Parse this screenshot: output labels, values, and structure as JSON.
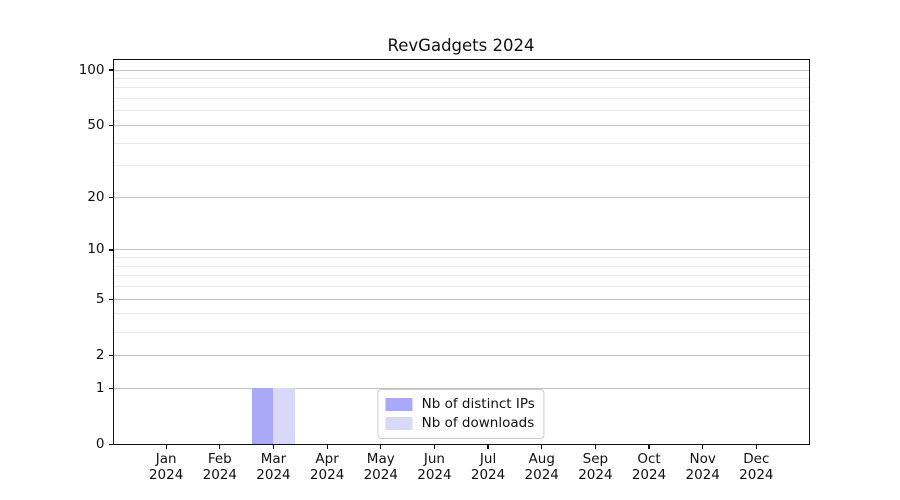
{
  "chart_data": {
    "type": "bar",
    "title": "RevGadgets 2024",
    "categories": [
      "Jan 2024",
      "Feb 2024",
      "Mar 2024",
      "Apr 2024",
      "May 2024",
      "Jun 2024",
      "Jul 2024",
      "Aug 2024",
      "Sep 2024",
      "Oct 2024",
      "Nov 2024",
      "Dec 2024"
    ],
    "series": [
      {
        "name": "Nb of distinct IPs",
        "color": "#a9a9f7",
        "values": [
          0,
          0,
          1,
          0,
          0,
          0,
          0,
          0,
          0,
          0,
          0,
          0
        ]
      },
      {
        "name": "Nb of downloads",
        "color": "#d8d8f9",
        "values": [
          0,
          0,
          1,
          0,
          0,
          0,
          0,
          0,
          0,
          0,
          0,
          0
        ]
      }
    ],
    "yscale": "log1p",
    "ylim": [
      0,
      100
    ],
    "y_major_ticks": [
      0,
      1,
      2,
      5,
      10,
      20,
      50,
      100
    ],
    "y_minor_ticks": [
      3,
      4,
      6,
      7,
      8,
      9,
      30,
      40,
      60,
      70,
      80,
      90
    ],
    "grid": true,
    "legend_position": "lower center",
    "colors": {
      "major_grid": "#c2c2c2",
      "minor_grid": "#e9e9e9",
      "spine": "#111111",
      "text": "#111111",
      "legend_border": "#cccccc"
    }
  }
}
